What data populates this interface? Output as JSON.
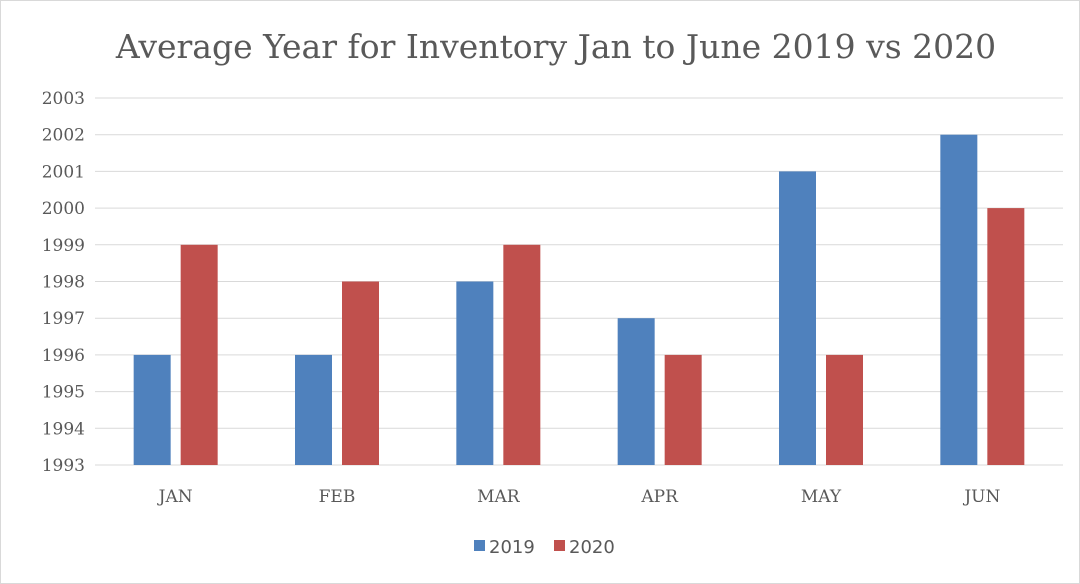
{
  "chart_data": {
    "type": "bar",
    "title": "Average Year for Inventory Jan to June 2019 vs 2020",
    "xlabel": "",
    "ylabel": "",
    "categories": [
      "JAN",
      "FEB",
      "MAR",
      "APR",
      "MAY",
      "JUN"
    ],
    "series": [
      {
        "name": "2019",
        "color": "#4f81bd",
        "values": [
          1996,
          1996,
          1998,
          1997,
          2001,
          2002
        ]
      },
      {
        "name": "2020",
        "color": "#c0504d",
        "values": [
          1999,
          1998,
          1999,
          1996,
          1996,
          2000
        ]
      }
    ],
    "ylim": [
      1993,
      2003
    ],
    "yticks": [
      "1993",
      "1994",
      "1995",
      "1996",
      "1997",
      "1998",
      "1999",
      "2000",
      "2001",
      "2002",
      "2003"
    ],
    "grid": true,
    "legend_position": "bottom"
  }
}
